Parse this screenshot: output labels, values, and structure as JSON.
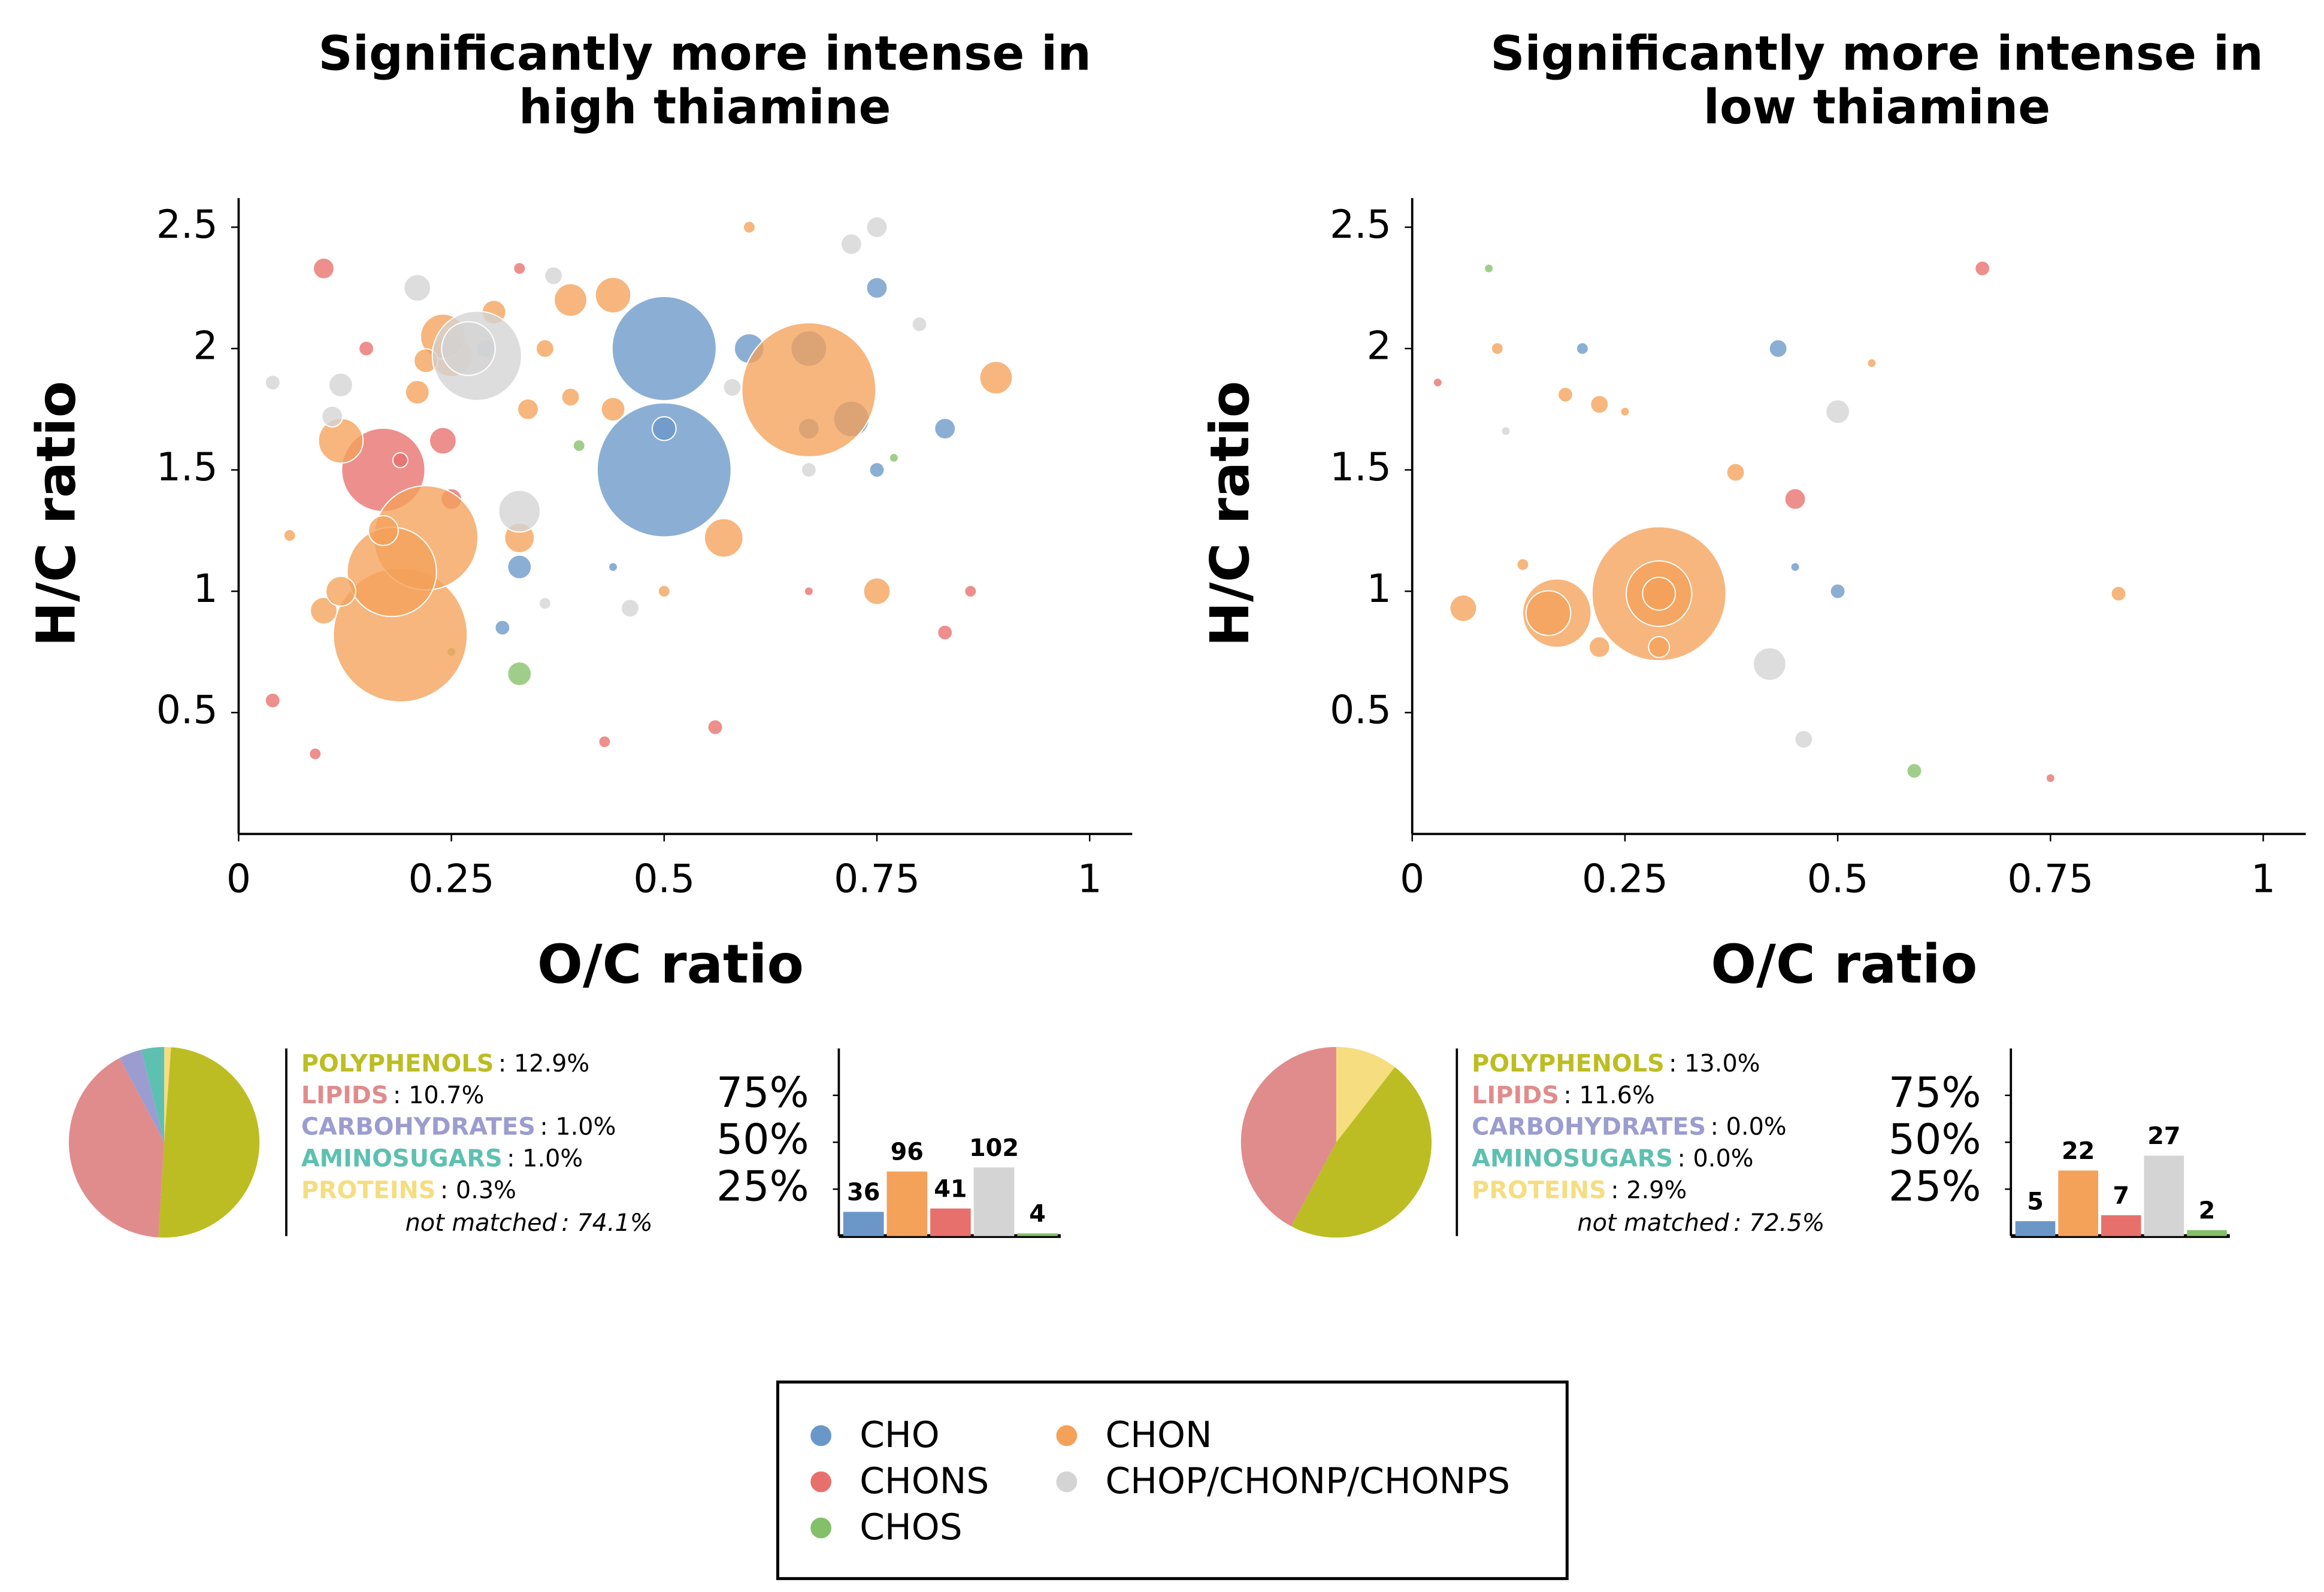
{
  "chart_data": [
    {
      "type": "bubble",
      "title": [
        "Significantly more intense in",
        "high thiamine"
      ],
      "x_label": "O/C ratio",
      "y_label": "H/C ratio",
      "xlim": [
        0,
        1.05
      ],
      "ylim": [
        0,
        2.62
      ],
      "xticks": [
        0,
        0.25,
        0.5,
        0.75,
        1
      ],
      "yticks": [
        0.5,
        1,
        1.5,
        2,
        2.5
      ],
      "series": [
        {
          "name": "CHO",
          "color": "#6a97c8",
          "x": [
            0.5,
            0.5,
            0.5,
            0.67,
            0.6,
            0.75,
            0.83,
            0.33,
            0.72,
            0.67,
            0.75,
            0.29,
            0.31,
            0.44
          ],
          "values": [
            2.0,
            1.5,
            1.67,
            2.0,
            2.0,
            2.25,
            1.67,
            1.1,
            1.71,
            1.67,
            1.5,
            2.0,
            0.85,
            1.1
          ],
          "sizes": [
            35,
            45,
            8,
            12,
            10,
            7,
            7,
            8,
            12,
            7,
            5,
            6,
            5,
            3
          ]
        },
        {
          "name": "CHONS",
          "color": "#e8706c",
          "x": [
            0.17,
            0.1,
            0.24,
            0.25,
            0.04,
            0.09,
            0.43,
            0.56,
            0.83,
            0.86,
            0.67,
            0.19,
            0.15,
            0.33
          ],
          "values": [
            1.5,
            2.33,
            1.62,
            1.38,
            0.55,
            0.33,
            0.38,
            0.44,
            0.83,
            1.0,
            1.0,
            1.54,
            2.0,
            2.33
          ],
          "sizes": [
            28,
            7,
            9,
            7,
            5,
            4,
            4,
            5,
            5,
            4,
            3,
            5,
            5,
            4
          ]
        },
        {
          "name": "CHOS",
          "color": "#84c06a",
          "x": [
            0.33,
            0.4,
            0.25,
            0.77
          ],
          "values": [
            0.66,
            1.6,
            0.75,
            1.55
          ],
          "sizes": [
            8,
            4,
            3,
            3
          ]
        },
        {
          "name": "CHON",
          "color": "#f4a15a",
          "x": [
            0.19,
            0.22,
            0.18,
            0.67,
            0.12,
            0.1,
            0.12,
            0.25,
            0.24,
            0.39,
            0.44,
            0.57,
            0.89,
            0.75,
            0.33,
            0.21,
            0.34,
            0.39,
            0.36,
            0.17,
            0.3,
            0.06,
            0.5,
            0.6,
            0.22,
            0.44
          ],
          "values": [
            0.82,
            1.22,
            1.08,
            1.83,
            1.62,
            0.92,
            1.0,
            1.97,
            2.05,
            2.2,
            2.22,
            1.22,
            1.88,
            1.0,
            1.22,
            1.82,
            1.75,
            1.8,
            2.0,
            1.25,
            2.15,
            1.23,
            1.0,
            2.5,
            1.95,
            1.75
          ],
          "sizes": [
            45,
            35,
            30,
            45,
            15,
            9,
            10,
            14,
            15,
            11,
            12,
            13,
            11,
            9,
            10,
            8,
            7,
            6,
            6,
            10,
            8,
            4,
            4,
            4,
            8,
            8
          ]
        },
        {
          "name": "CHOP/CHONP/CHONPS",
          "color": "#d4d4d4",
          "x": [
            0.28,
            0.27,
            0.21,
            0.33,
            0.75,
            0.72,
            0.37,
            0.46,
            0.8,
            0.04,
            0.11,
            0.12,
            0.67,
            0.58,
            0.36
          ],
          "values": [
            1.97,
            2.0,
            2.25,
            1.33,
            2.5,
            2.43,
            2.3,
            0.93,
            2.1,
            1.86,
            1.72,
            1.85,
            1.5,
            1.84,
            0.95
          ],
          "sizes": [
            30,
            18,
            9,
            14,
            7,
            7,
            6,
            6,
            5,
            5,
            7,
            8,
            5,
            6,
            4
          ]
        }
      ]
    },
    {
      "type": "bubble",
      "title": [
        "Significantly more intense in",
        "low thiamine"
      ],
      "x_label": "O/C ratio",
      "y_label": "H/C ratio",
      "xlim": [
        0,
        1.05
      ],
      "ylim": [
        0,
        2.62
      ],
      "xticks": [
        0,
        0.25,
        0.5,
        0.75,
        1
      ],
      "yticks": [
        0.5,
        1,
        1.5,
        2,
        2.5
      ],
      "series": [
        {
          "name": "CHO",
          "color": "#6a97c8",
          "x": [
            0.43,
            0.2,
            0.45,
            0.5
          ],
          "values": [
            2.0,
            2.0,
            1.1,
            1.0
          ],
          "sizes": [
            6,
            4,
            3,
            5
          ]
        },
        {
          "name": "CHONS",
          "color": "#e8706c",
          "x": [
            0.67,
            0.45,
            0.03,
            0.75
          ],
          "values": [
            2.33,
            1.38,
            1.86,
            0.23
          ],
          "sizes": [
            5,
            7,
            3,
            3
          ]
        },
        {
          "name": "CHOS",
          "color": "#84c06a",
          "x": [
            0.09,
            0.59
          ],
          "values": [
            2.33,
            0.26
          ],
          "sizes": [
            3,
            5
          ]
        },
        {
          "name": "CHON",
          "color": "#f4a15a",
          "x": [
            0.29,
            0.29,
            0.29,
            0.17,
            0.16,
            0.06,
            0.22,
            0.29,
            0.38,
            0.18,
            0.22,
            0.25,
            0.13,
            0.1,
            0.54,
            0.83
          ],
          "values": [
            0.99,
            0.99,
            0.99,
            0.91,
            0.91,
            0.93,
            0.77,
            0.77,
            1.49,
            1.81,
            1.77,
            1.74,
            1.11,
            2.0,
            1.94,
            0.99
          ],
          "sizes": [
            45,
            22,
            11,
            23,
            15,
            9,
            7,
            7,
            6,
            5,
            6,
            3,
            4,
            4,
            3,
            5
          ]
        },
        {
          "name": "CHOP/CHONP/CHONPS",
          "color": "#d4d4d4",
          "x": [
            0.5,
            0.42,
            0.46,
            0.11
          ],
          "values": [
            1.74,
            0.7,
            0.39,
            1.66
          ],
          "sizes": [
            8,
            11,
            6,
            3
          ]
        }
      ]
    },
    {
      "type": "pie",
      "categories": [
        "POLYPHENOLS",
        "LIPIDS",
        "CARBOHYDRATES",
        "AMINOSUGARS",
        "PROTEINS"
      ],
      "values": [
        12.9,
        10.7,
        1.0,
        1.0,
        0.3
      ],
      "value_labels": [
        ": 12.9%",
        ": 10.7%",
        ": 1.0%",
        ": 1.0%",
        ": 0.3%"
      ],
      "colors": [
        "#bcbd22",
        "#e08c8c",
        "#9b9dd0",
        "#5ec0b0",
        "#f5dd80"
      ],
      "other": {
        "label": "not matched",
        "value": 74.1,
        "value_label": ": 74.1%"
      }
    },
    {
      "type": "pie",
      "categories": [
        "POLYPHENOLS",
        "LIPIDS",
        "CARBOHYDRATES",
        "AMINOSUGARS",
        "PROTEINS"
      ],
      "values": [
        13.0,
        11.6,
        0.0,
        0.0,
        2.9
      ],
      "value_labels": [
        ": 13.0%",
        ": 11.6%",
        ": 0.0%",
        ": 0.0%",
        ": 2.9%"
      ],
      "colors": [
        "#bcbd22",
        "#e08c8c",
        "#9b9dd0",
        "#5ec0b0",
        "#f5dd80"
      ],
      "other": {
        "label": "not matched",
        "value": 72.5,
        "value_label": ": 72.5%"
      }
    },
    {
      "type": "bar",
      "values": [
        36,
        96,
        41,
        102,
        4
      ],
      "colors": [
        "#6a97c8",
        "#f4a15a",
        "#e8706c",
        "#d4d4d4",
        "#84c06a"
      ],
      "percent_of_total": true,
      "ylim": [
        0,
        100
      ],
      "yticks": [
        {
          "value": 25,
          "label": "25%"
        },
        {
          "value": 50,
          "label": "50%"
        },
        {
          "value": 75,
          "label": "75%"
        }
      ]
    },
    {
      "type": "bar",
      "values": [
        5,
        22,
        7,
        27,
        2
      ],
      "colors": [
        "#6a97c8",
        "#f4a15a",
        "#e8706c",
        "#d4d4d4",
        "#84c06a"
      ],
      "percent_of_total": true,
      "ylim": [
        0,
        100
      ],
      "yticks": [
        {
          "value": 25,
          "label": "25%"
        },
        {
          "value": 50,
          "label": "50%"
        },
        {
          "value": 75,
          "label": "75%"
        }
      ]
    }
  ]
}
